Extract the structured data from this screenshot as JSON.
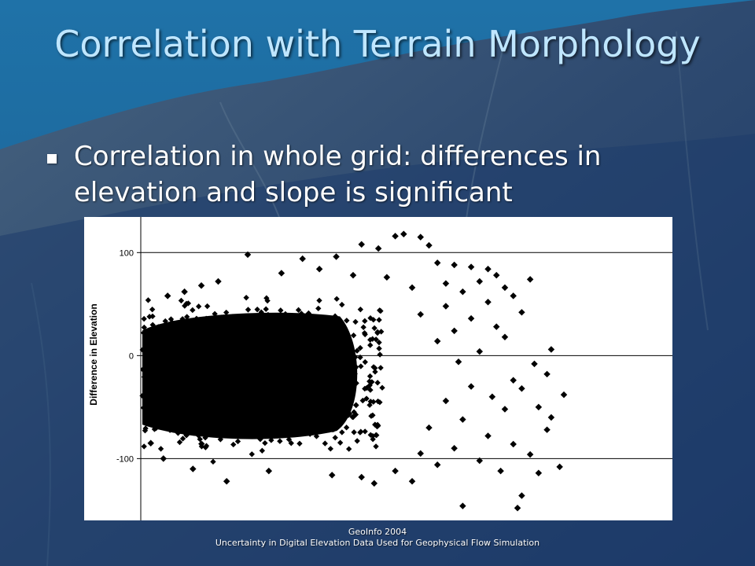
{
  "slide": {
    "title": "Correlation with Terrain Morphology",
    "bullet": "Correlation in whole grid: differences in elevation and slope is significant"
  },
  "footer": {
    "line1": "GeoInfo 2004",
    "line2": "Uncertainty in Digital Elevation Data Used for Geophysical Flow Simulation"
  },
  "colors": {
    "title": "#bfe6ff",
    "background": "#1e4c7a",
    "markers": "#000000"
  },
  "chart_data": {
    "type": "scatter",
    "title": "",
    "xlabel": "",
    "ylabel": "Difference in Elevation",
    "ylim": [
      -160,
      130
    ],
    "xlim": [
      0,
      1
    ],
    "y_ticks": [
      100,
      0,
      -100
    ],
    "x_ticks_shown": false,
    "grid": "horizontal lines at y ticks",
    "legend": "none",
    "marker": "black diamond",
    "dense_cluster": {
      "x_range": [
        0.0,
        0.45
      ],
      "y_range": [
        -70,
        35
      ],
      "description_values": {
        "x_center": 0.2,
        "y_center": -15
      }
    },
    "points": [
      {
        "x": 0.62,
        "y": 118
      },
      {
        "x": 0.6,
        "y": 116
      },
      {
        "x": 0.66,
        "y": 115
      },
      {
        "x": 0.68,
        "y": 107
      },
      {
        "x": 0.52,
        "y": 108
      },
      {
        "x": 0.56,
        "y": 104
      },
      {
        "x": 0.25,
        "y": 98
      },
      {
        "x": 0.38,
        "y": 94
      },
      {
        "x": 0.46,
        "y": 96
      },
      {
        "x": 0.7,
        "y": 90
      },
      {
        "x": 0.74,
        "y": 88
      },
      {
        "x": 0.78,
        "y": 86
      },
      {
        "x": 0.82,
        "y": 84
      },
      {
        "x": 0.84,
        "y": 78
      },
      {
        "x": 0.92,
        "y": 74
      },
      {
        "x": 0.8,
        "y": 72
      },
      {
        "x": 0.72,
        "y": 70
      },
      {
        "x": 0.86,
        "y": 66
      },
      {
        "x": 0.76,
        "y": 62
      },
      {
        "x": 0.88,
        "y": 58
      },
      {
        "x": 0.82,
        "y": 52
      },
      {
        "x": 0.72,
        "y": 48
      },
      {
        "x": 0.9,
        "y": 42
      },
      {
        "x": 0.78,
        "y": 36
      },
      {
        "x": 0.66,
        "y": 40
      },
      {
        "x": 0.84,
        "y": 28
      },
      {
        "x": 0.74,
        "y": 24
      },
      {
        "x": 0.86,
        "y": 18
      },
      {
        "x": 0.7,
        "y": 14
      },
      {
        "x": 0.97,
        "y": 6
      },
      {
        "x": 0.8,
        "y": 4
      },
      {
        "x": 0.93,
        "y": -8
      },
      {
        "x": 0.75,
        "y": -6
      },
      {
        "x": 0.96,
        "y": -18
      },
      {
        "x": 0.88,
        "y": -24
      },
      {
        "x": 0.78,
        "y": -30
      },
      {
        "x": 0.9,
        "y": -32
      },
      {
        "x": 0.83,
        "y": -40
      },
      {
        "x": 1.0,
        "y": -38
      },
      {
        "x": 0.72,
        "y": -44
      },
      {
        "x": 0.94,
        "y": -50
      },
      {
        "x": 0.86,
        "y": -52
      },
      {
        "x": 0.97,
        "y": -60
      },
      {
        "x": 0.76,
        "y": -62
      },
      {
        "x": 0.68,
        "y": -70
      },
      {
        "x": 0.96,
        "y": -72
      },
      {
        "x": 0.82,
        "y": -78
      },
      {
        "x": 0.88,
        "y": -86
      },
      {
        "x": 0.74,
        "y": -90
      },
      {
        "x": 0.66,
        "y": -95
      },
      {
        "x": 0.92,
        "y": -96
      },
      {
        "x": 0.8,
        "y": -102
      },
      {
        "x": 0.7,
        "y": -106
      },
      {
        "x": 0.99,
        "y": -108
      },
      {
        "x": 0.6,
        "y": -112
      },
      {
        "x": 0.85,
        "y": -112
      },
      {
        "x": 0.94,
        "y": -114
      },
      {
        "x": 0.3,
        "y": -112
      },
      {
        "x": 0.2,
        "y": -122
      },
      {
        "x": 0.45,
        "y": -116
      },
      {
        "x": 0.52,
        "y": -118
      },
      {
        "x": 0.64,
        "y": -122
      },
      {
        "x": 0.9,
        "y": -136
      },
      {
        "x": 0.76,
        "y": -146
      },
      {
        "x": 0.89,
        "y": -148
      },
      {
        "x": 0.55,
        "y": -124
      },
      {
        "x": 0.12,
        "y": -110
      },
      {
        "x": 0.05,
        "y": -100
      },
      {
        "x": 0.02,
        "y": -85
      },
      {
        "x": 0.1,
        "y": 62
      },
      {
        "x": 0.14,
        "y": 68
      },
      {
        "x": 0.18,
        "y": 72
      },
      {
        "x": 0.33,
        "y": 80
      },
      {
        "x": 0.42,
        "y": 84
      },
      {
        "x": 0.5,
        "y": 78
      },
      {
        "x": 0.58,
        "y": 76
      },
      {
        "x": 0.64,
        "y": 66
      },
      {
        "x": 0.06,
        "y": 58
      }
    ]
  }
}
